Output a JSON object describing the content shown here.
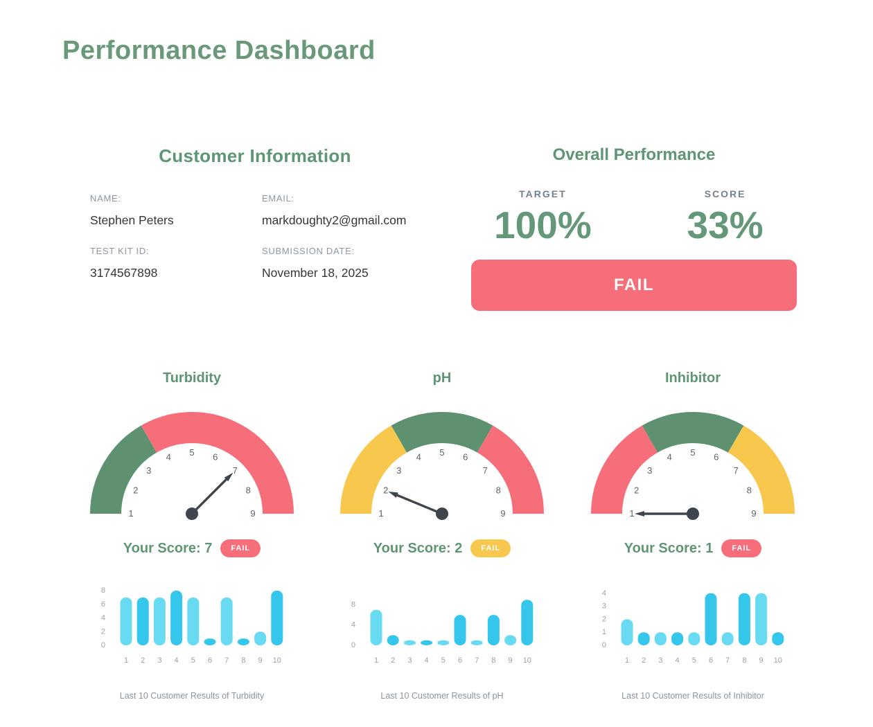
{
  "page_title": "Performance Dashboard",
  "customer_info": {
    "heading": "Customer Information",
    "fields": [
      {
        "label": "NAME:",
        "value": "Stephen Peters"
      },
      {
        "label": "EMAIL:",
        "value": "markdoughty2@gmail.com"
      },
      {
        "label": "TEST KIT ID:",
        "value": "3174567898"
      },
      {
        "label": "SUBMISSION DATE:",
        "value": "November 18, 2025"
      }
    ]
  },
  "overall_performance": {
    "heading": "Overall Performance",
    "target_label": "TARGET",
    "target_value": "100%",
    "score_label": "SCORE",
    "score_value": "33%",
    "status_label": "FAIL",
    "status_color": "#F56E79"
  },
  "colors": {
    "title_green": "#699978",
    "heading_green": "#5E9574",
    "gauge_green": "#5D9170",
    "red": "#F56E79",
    "yellow": "#F8C74E",
    "needle": "#3F454D",
    "bar_light": "#68DBF3",
    "bar_dark": "#35C6EC",
    "axis_gray": "#99A2AB",
    "label_gray": "#8D97A3",
    "value_dark": "#33373C"
  },
  "chart_data": [
    {
      "type": "gauge",
      "title": "Turbidity",
      "min": 1,
      "max": 9,
      "value": 7,
      "tick_labels": [
        "1",
        "2",
        "3",
        "4",
        "5",
        "6",
        "7",
        "8",
        "9"
      ],
      "segments": [
        {
          "from": 1,
          "to": 3.67,
          "color": "#5D9170"
        },
        {
          "from": 3.67,
          "to": 9,
          "color": "#F56E79"
        }
      ],
      "score_text": "Your Score: 7",
      "badge_label": "FAIL",
      "badge_color": "#F56E79"
    },
    {
      "type": "gauge",
      "title": "pH",
      "min": 1,
      "max": 9,
      "value": 2,
      "tick_labels": [
        "1",
        "2",
        "3",
        "4",
        "5",
        "6",
        "7",
        "8",
        "9"
      ],
      "segments": [
        {
          "from": 1,
          "to": 3.67,
          "color": "#F8C74E"
        },
        {
          "from": 3.67,
          "to": 6.33,
          "color": "#5D9170"
        },
        {
          "from": 6.33,
          "to": 9,
          "color": "#F56E79"
        }
      ],
      "score_text": "Your Score: 2",
      "badge_label": "FAIL",
      "badge_color": "#F8C74E"
    },
    {
      "type": "gauge",
      "title": "Inhibitor",
      "min": 1,
      "max": 9,
      "value": 1,
      "tick_labels": [
        "1",
        "2",
        "3",
        "4",
        "5",
        "6",
        "7",
        "8",
        "9"
      ],
      "segments": [
        {
          "from": 1,
          "to": 3.67,
          "color": "#F56E79"
        },
        {
          "from": 3.67,
          "to": 6.33,
          "color": "#5D9170"
        },
        {
          "from": 6.33,
          "to": 9,
          "color": "#F8C74E"
        }
      ],
      "score_text": "Your Score: 1",
      "badge_label": "FAIL",
      "badge_color": "#F56E79"
    },
    {
      "type": "bar",
      "caption": "Last 10 Customer Results of Turbidity",
      "categories": [
        "1",
        "2",
        "3",
        "4",
        "5",
        "6",
        "7",
        "8",
        "9",
        "10"
      ],
      "values": [
        7,
        7,
        7,
        8,
        7,
        1,
        7,
        1,
        2,
        8
      ],
      "yticks": [
        0,
        2,
        4,
        6,
        8
      ],
      "ylim": [
        0,
        8
      ],
      "bar_colors": [
        "#68DBF3",
        "#35C6EC"
      ]
    },
    {
      "type": "bar",
      "caption": "Last 10 Customer Results of pH",
      "categories": [
        "1",
        "2",
        "3",
        "4",
        "5",
        "6",
        "7",
        "8",
        "9",
        "10"
      ],
      "values": [
        7,
        2,
        1,
        1,
        1,
        6,
        1,
        6,
        2,
        9
      ],
      "yticks": [
        0,
        4,
        8
      ],
      "ylim": [
        0,
        10.8
      ],
      "bar_colors": [
        "#68DBF3",
        "#35C6EC"
      ]
    },
    {
      "type": "bar",
      "caption": "Last 10 Customer Results of Inhibitor",
      "categories": [
        "1",
        "2",
        "3",
        "4",
        "5",
        "6",
        "7",
        "8",
        "9",
        "10"
      ],
      "values": [
        2,
        1,
        1,
        1,
        1,
        4,
        1,
        4,
        4,
        1
      ],
      "yticks": [
        0,
        1,
        2,
        3,
        4
      ],
      "ylim": [
        0,
        4.2
      ],
      "bar_colors": [
        "#68DBF3",
        "#35C6EC"
      ]
    }
  ]
}
